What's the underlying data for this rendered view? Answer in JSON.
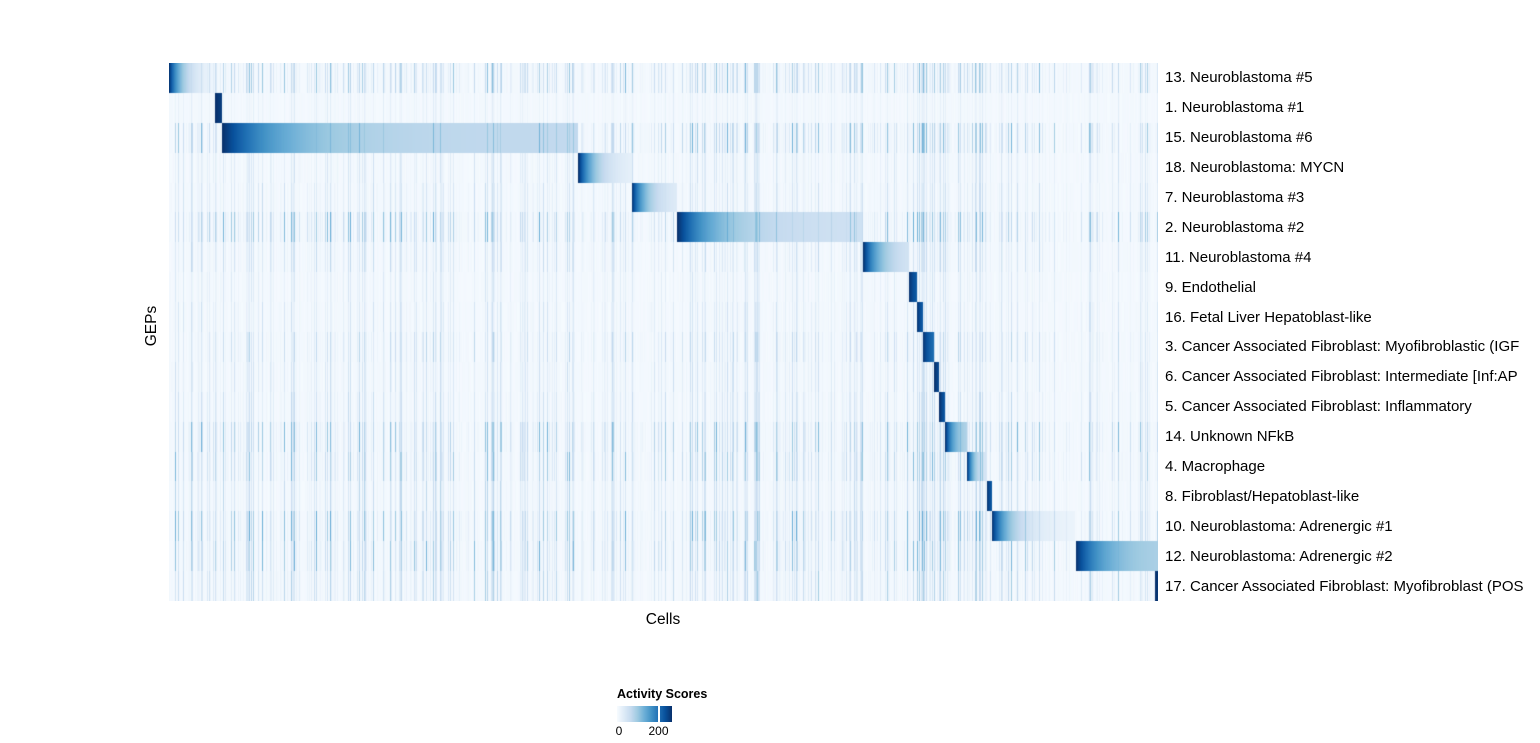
{
  "chart_data": {
    "type": "heatmap",
    "title": "",
    "xlabel": "Cells",
    "ylabel": "GEPs",
    "value_range": [
      0,
      200
    ],
    "grid": false,
    "legend": {
      "title": "Activity Scores",
      "min_label": "0",
      "max_label": "200",
      "tick_fraction": 0.755,
      "position": "bottom-center"
    },
    "colormap": {
      "name": "Blues",
      "min_color": "#f7fbff",
      "max_color": "#08306b",
      "stops": [
        "#f7fbff",
        "#deebf7",
        "#c6dbef",
        "#9ecae1",
        "#6baed6",
        "#4292c6",
        "#2171b5",
        "#08519c",
        "#08306b"
      ]
    },
    "description": "Cells (columns) are ordered by their maximally active gene expression program; each GEP row shows a dark-to-light activity block over its own cells plus faint vertical background-activity stripes.",
    "rows": [
      {
        "label": "13. Neuroblastoma #5",
        "block_start": 0.0,
        "block_end": 0.047,
        "peak": 1.0,
        "tail": 0.0,
        "decay": 3.2,
        "noise": 0.75
      },
      {
        "label": "1. Neuroblastoma #1",
        "block_start": 0.047,
        "block_end": 0.054,
        "peak": 1.0,
        "tail": 0.85,
        "decay": 0.5,
        "noise": 0.2
      },
      {
        "label": "15. Neuroblastoma #6",
        "block_start": 0.054,
        "block_end": 0.414,
        "peak": 1.0,
        "tail": 0.26,
        "decay": 6.0,
        "noise": 0.8
      },
      {
        "label": "18. Neuroblastoma: MYCN",
        "block_start": 0.414,
        "block_end": 0.468,
        "peak": 1.0,
        "tail": 0.05,
        "decay": 3.2,
        "noise": 0.35
      },
      {
        "label": "7. Neuroblastoma #3",
        "block_start": 0.468,
        "block_end": 0.514,
        "peak": 1.0,
        "tail": 0.08,
        "decay": 3.0,
        "noise": 0.4
      },
      {
        "label": "2. Neuroblastoma #2",
        "block_start": 0.514,
        "block_end": 0.702,
        "peak": 1.0,
        "tail": 0.2,
        "decay": 5.0,
        "noise": 0.85
      },
      {
        "label": "11. Neuroblastoma #4",
        "block_start": 0.702,
        "block_end": 0.748,
        "peak": 1.0,
        "tail": 0.12,
        "decay": 2.6,
        "noise": 0.45
      },
      {
        "label": "9. Endothelial",
        "block_start": 0.748,
        "block_end": 0.756,
        "peak": 1.0,
        "tail": 0.7,
        "decay": 0.8,
        "noise": 0.3
      },
      {
        "label": "16. Fetal Liver Hepatoblast-like",
        "block_start": 0.756,
        "block_end": 0.762,
        "peak": 1.0,
        "tail": 0.7,
        "decay": 0.8,
        "noise": 0.35
      },
      {
        "label": "3. Cancer Associated Fibroblast: Myofibroblastic (IGF",
        "block_start": 0.762,
        "block_end": 0.774,
        "peak": 1.0,
        "tail": 0.65,
        "decay": 1.2,
        "noise": 0.5
      },
      {
        "label": "6. Cancer Associated Fibroblast: Intermediate [Inf:AP",
        "block_start": 0.774,
        "block_end": 0.779,
        "peak": 1.0,
        "tail": 0.75,
        "decay": 0.6,
        "noise": 0.4
      },
      {
        "label": "5. Cancer Associated Fibroblast: Inflammatory",
        "block_start": 0.779,
        "block_end": 0.785,
        "peak": 1.0,
        "tail": 0.7,
        "decay": 0.8,
        "noise": 0.45
      },
      {
        "label": "14. Unknown NFkB",
        "block_start": 0.785,
        "block_end": 0.807,
        "peak": 1.0,
        "tail": 0.25,
        "decay": 2.5,
        "noise": 0.8
      },
      {
        "label": "4. Macrophage",
        "block_start": 0.807,
        "block_end": 0.827,
        "peak": 1.0,
        "tail": 0.1,
        "decay": 2.8,
        "noise": 0.75
      },
      {
        "label": "8. Fibroblast/Hepatoblast-like",
        "block_start": 0.827,
        "block_end": 0.832,
        "peak": 1.0,
        "tail": 0.7,
        "decay": 0.8,
        "noise": 0.5
      },
      {
        "label": "10. Neuroblastoma: Adrenergic #1",
        "block_start": 0.832,
        "block_end": 0.916,
        "peak": 1.0,
        "tail": 0.05,
        "decay": 4.5,
        "noise": 0.85
      },
      {
        "label": "12. Neuroblastoma: Adrenergic #2",
        "block_start": 0.917,
        "block_end": 1.0,
        "peak": 1.0,
        "tail": 0.3,
        "decay": 3.0,
        "noise": 0.8
      },
      {
        "label": "17. Cancer Associated Fibroblast: Myofibroblast (POS",
        "block_start": 0.997,
        "block_end": 1.0,
        "peak": 1.0,
        "tail": 0.9,
        "decay": 0.3,
        "noise": 0.6
      }
    ],
    "noise_boost_region": {
      "start": 0.745,
      "end": 0.838,
      "factor": 1.8
    }
  }
}
